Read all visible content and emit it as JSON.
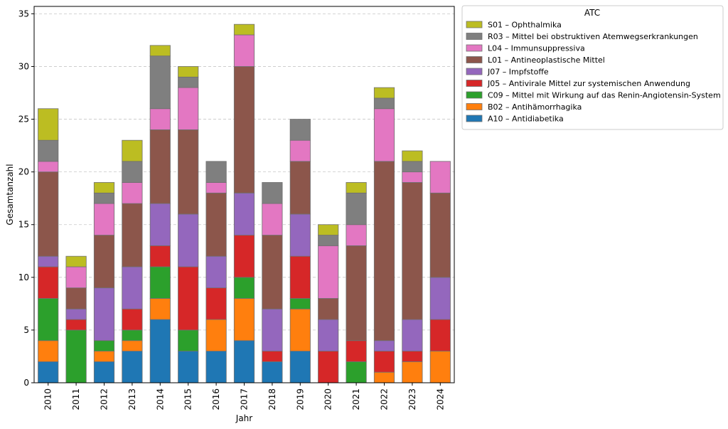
{
  "chart_data": {
    "type": "bar",
    "stacked": true,
    "title": "",
    "xlabel": "Jahr",
    "ylabel": "Gesamtanzahl",
    "ylim": [
      0,
      35.7
    ],
    "yticks": [
      0,
      5,
      10,
      15,
      20,
      25,
      30,
      35
    ],
    "grid": "horizontal-dashed",
    "legend_title": "ATC",
    "legend_position": "outside-top-right",
    "categories": [
      "2010",
      "2011",
      "2012",
      "2013",
      "2014",
      "2015",
      "2016",
      "2017",
      "2018",
      "2019",
      "2020",
      "2021",
      "2022",
      "2023",
      "2024"
    ],
    "series": [
      {
        "name": "A10 – Antidiabetika",
        "color": "#1f77b4",
        "values": [
          2,
          0,
          2,
          3,
          6,
          3,
          3,
          4,
          2,
          3,
          0,
          0,
          0,
          0,
          0
        ]
      },
      {
        "name": "B02 – Antihämorrhagika",
        "color": "#ff7f0e",
        "values": [
          2,
          0,
          1,
          1,
          2,
          0,
          3,
          4,
          0,
          4,
          0,
          0,
          1,
          2,
          3
        ]
      },
      {
        "name": "C09 – Mittel mit Wirkung auf das Renin-Angiotensin-System",
        "color": "#2ca02c",
        "values": [
          4,
          5,
          1,
          1,
          3,
          2,
          0,
          2,
          0,
          1,
          0,
          2,
          0,
          0,
          0
        ]
      },
      {
        "name": "J05 – Antivirale Mittel zur systemischen Anwendung",
        "color": "#d62728",
        "values": [
          3,
          1,
          0,
          2,
          2,
          6,
          3,
          4,
          1,
          4,
          3,
          2,
          2,
          1,
          3
        ]
      },
      {
        "name": "J07 – Impfstoffe",
        "color": "#9467bd",
        "values": [
          1,
          1,
          5,
          4,
          4,
          5,
          3,
          4,
          4,
          4,
          3,
          0,
          1,
          3,
          4
        ]
      },
      {
        "name": "L01 – Antineoplastische Mittel",
        "color": "#8c564b",
        "values": [
          8,
          2,
          5,
          6,
          7,
          8,
          6,
          12,
          7,
          5,
          2,
          9,
          17,
          13,
          8
        ]
      },
      {
        "name": "L04 – Immunsuppressiva",
        "color": "#e377c2",
        "values": [
          1,
          2,
          3,
          2,
          2,
          4,
          1,
          3,
          3,
          2,
          5,
          2,
          5,
          1,
          3
        ]
      },
      {
        "name": "R03 – Mittel bei obstruktiven Atemwegserkrankungen",
        "color": "#7f7f7f",
        "values": [
          2,
          0,
          1,
          2,
          5,
          1,
          2,
          0,
          2,
          2,
          1,
          3,
          1,
          1,
          0
        ]
      },
      {
        "name": "S01 – Ophthalmika",
        "color": "#bcbd22",
        "values": [
          3,
          1,
          1,
          2,
          1,
          1,
          0,
          1,
          0,
          0,
          1,
          1,
          1,
          1,
          0
        ]
      }
    ]
  }
}
